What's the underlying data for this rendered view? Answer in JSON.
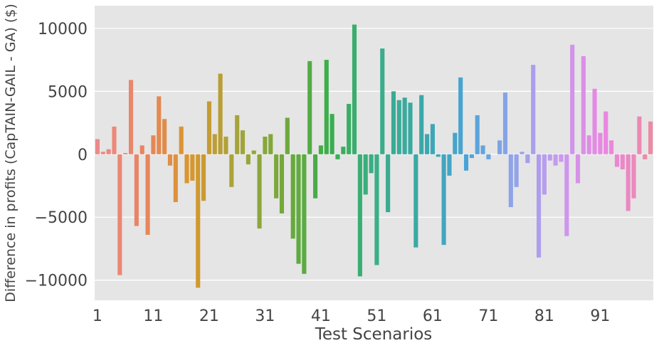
{
  "chart_data": {
    "type": "bar",
    "xlabel": "Test Scenarios",
    "ylabel": "Difference in profits (CapTAIN-GAIL - GA) ($)",
    "ylim": [
      -11600,
      11800
    ],
    "grid": true,
    "x_tick_labels": [
      "1",
      "11",
      "21",
      "31",
      "41",
      "51",
      "61",
      "71",
      "81",
      "91"
    ],
    "y_ticks": [
      -10000,
      -5000,
      0,
      5000,
      10000
    ],
    "y_tick_labels": [
      "−10000",
      "−5000",
      "0",
      "5000",
      "10000"
    ],
    "categories": [
      1,
      2,
      3,
      4,
      5,
      6,
      7,
      8,
      9,
      10,
      11,
      12,
      13,
      14,
      15,
      16,
      17,
      18,
      19,
      20,
      21,
      22,
      23,
      24,
      25,
      26,
      27,
      28,
      29,
      30,
      31,
      32,
      33,
      34,
      35,
      36,
      37,
      38,
      39,
      40,
      41,
      42,
      43,
      44,
      45,
      46,
      47,
      48,
      49,
      50,
      51,
      52,
      53,
      54,
      55,
      56,
      57,
      58,
      59,
      60,
      61,
      62,
      63,
      64,
      65,
      66,
      67,
      68,
      69,
      70,
      71,
      72,
      73,
      74,
      75,
      76,
      77,
      78,
      79,
      80,
      81,
      82,
      83,
      84,
      85,
      86,
      87,
      88,
      89,
      90,
      91,
      92,
      93,
      94,
      95,
      96,
      97,
      98,
      99,
      100
    ],
    "values": [
      1200,
      200,
      400,
      2200,
      -9600,
      100,
      5900,
      -5700,
      700,
      -6400,
      1500,
      4600,
      2800,
      -900,
      -3800,
      2200,
      -2300,
      -2100,
      -10600,
      -3700,
      4200,
      1600,
      6400,
      1400,
      -2600,
      3100,
      1900,
      -800,
      300,
      -5900,
      1400,
      1600,
      -3500,
      -4700,
      2900,
      -6700,
      -8700,
      -9500,
      7400,
      -3500,
      700,
      7500,
      3200,
      -400,
      600,
      4000,
      10300,
      -9700,
      -3200,
      -1500,
      -8800,
      8400,
      -4600,
      5000,
      4300,
      4500,
      4100,
      -7400,
      4700,
      1600,
      2400,
      -200,
      -7200,
      -1700,
      1700,
      6100,
      -1300,
      -300,
      3100,
      700,
      -400,
      0,
      1100,
      4900,
      -4200,
      -2600,
      200,
      -700,
      7100,
      -8200,
      -3200,
      -500,
      -900,
      -600,
      -6500,
      8700,
      -2300,
      7800,
      1500,
      5200,
      1700,
      3400,
      1100,
      -1000,
      -1200,
      -4500,
      -3500,
      3000,
      -400,
      2600
    ],
    "colors": [
      "#ec8a8a",
      "#e8845f",
      "#d9962e",
      "#a6a43a",
      "#76a83a",
      "#3aae4a",
      "#3aae86",
      "#3aa8a8",
      "#4aa4d6",
      "#8fa4ea",
      "#c89aee",
      "#ea86e2",
      "#ec8aa4"
    ]
  }
}
